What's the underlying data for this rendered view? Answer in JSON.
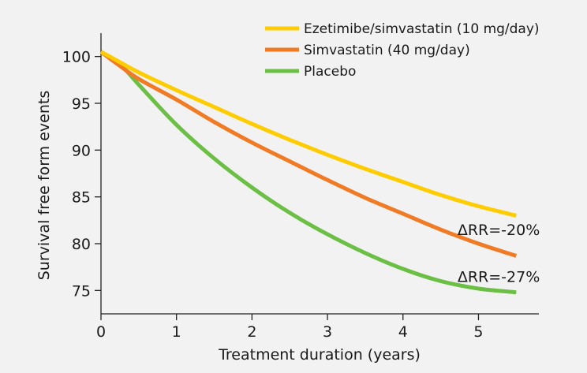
{
  "chart_data": {
    "type": "line",
    "title": "",
    "xlabel": "Treatment duration (years)",
    "ylabel": "Survival free form events",
    "xlim": [
      0,
      5.8
    ],
    "ylim": [
      72.5,
      102.5
    ],
    "x_ticks": [
      "0",
      "1",
      "2",
      "3",
      "4",
      "5"
    ],
    "x_tick_values": [
      0,
      1,
      2,
      3,
      4,
      5
    ],
    "y_ticks": [
      "75",
      "80",
      "85",
      "90",
      "95",
      "100"
    ],
    "y_tick_values": [
      75,
      80,
      85,
      90,
      95,
      100
    ],
    "grid": false,
    "legend_position": "top-right",
    "series": [
      {
        "name": "Ezetimibe/simvastatin (10 mg/day)",
        "color": "#ffcc00",
        "x": [
          0,
          0.25,
          0.5,
          1,
          1.5,
          2,
          2.5,
          3,
          3.5,
          4,
          4.5,
          5,
          5.5
        ],
        "values": [
          100.5,
          99.4,
          98.3,
          96.4,
          94.6,
          92.8,
          91.1,
          89.5,
          88.0,
          86.6,
          85.2,
          84.0,
          83.0
        ]
      },
      {
        "name": "Simvastatin (40 mg/day)",
        "color": "#f07b24",
        "x": [
          0,
          0.25,
          0.5,
          1,
          1.5,
          2,
          2.5,
          3,
          3.5,
          4,
          4.5,
          5,
          5.5
        ],
        "values": [
          100.5,
          99.0,
          97.6,
          95.4,
          93.0,
          90.8,
          88.8,
          86.8,
          84.9,
          83.2,
          81.5,
          80.0,
          78.7
        ]
      },
      {
        "name": "Placebo",
        "color": "#6bbf45",
        "x": [
          0,
          0.25,
          0.5,
          1,
          1.5,
          2,
          2.5,
          3,
          3.5,
          4,
          4.5,
          5,
          5.5
        ],
        "values": [
          100.5,
          99.2,
          97.0,
          92.7,
          89.1,
          86.0,
          83.3,
          81.0,
          79.0,
          77.3,
          76.0,
          75.2,
          74.8
        ]
      }
    ],
    "annotations": [
      {
        "text": "ΔRR=-20%",
        "x": 5.5,
        "y": 81.5
      },
      {
        "text": "ΔRR=-27%",
        "x": 5.5,
        "y": 76.5
      }
    ]
  }
}
